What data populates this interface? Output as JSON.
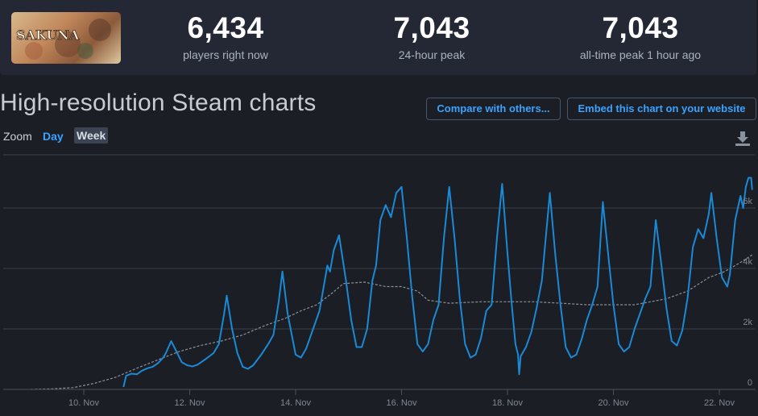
{
  "header": {
    "logo_text": "SAKUNA",
    "stats": [
      {
        "value": "6,434",
        "label": "players right now"
      },
      {
        "value": "7,043",
        "label": "24-hour peak"
      },
      {
        "value": "7,043",
        "label": "all-time peak 1 hour ago"
      }
    ]
  },
  "section": {
    "title": "High-resolution Steam charts",
    "compare_label": "Compare with others...",
    "embed_label": "Embed this chart on your website"
  },
  "zoom": {
    "label": "Zoom",
    "options": [
      "Day",
      "Week"
    ],
    "selected": "Week"
  },
  "icons": {
    "download": "download-icon"
  },
  "colors": {
    "players_line": "#1a8ad6",
    "average_line": "#8b9199",
    "accent": "#3aa2ff",
    "background": "#1b1e25"
  },
  "chart_data": {
    "type": "line",
    "xlabel": "",
    "ylabel": "",
    "x_unit": "day of November",
    "xlim": [
      9.0,
      22.5
    ],
    "ylim": [
      0,
      7300
    ],
    "y_ticks": [
      0,
      2000,
      4000,
      6000
    ],
    "y_tick_labels": [
      "0",
      "2k",
      "4k",
      "6k"
    ],
    "x_ticks": [
      10,
      12,
      14,
      16,
      18,
      20,
      22
    ],
    "x_tick_labels": [
      "10. Nov",
      "12. Nov",
      "14. Nov",
      "16. Nov",
      "18. Nov",
      "20. Nov",
      "22. Nov"
    ],
    "grid": true,
    "series": [
      {
        "name": "",
        "style": "solid",
        "points": [
          [
            10.75,
            80
          ],
          [
            10.8,
            450
          ],
          [
            10.9,
            520
          ],
          [
            11.0,
            500
          ],
          [
            11.1,
            620
          ],
          [
            11.2,
            700
          ],
          [
            11.3,
            750
          ],
          [
            11.4,
            870
          ],
          [
            11.5,
            1050
          ],
          [
            11.55,
            1200
          ],
          [
            11.65,
            1600
          ],
          [
            11.75,
            1250
          ],
          [
            11.85,
            900
          ],
          [
            11.95,
            800
          ],
          [
            12.05,
            760
          ],
          [
            12.15,
            820
          ],
          [
            12.3,
            1000
          ],
          [
            12.45,
            1200
          ],
          [
            12.55,
            1500
          ],
          [
            12.65,
            2500
          ],
          [
            12.7,
            3100
          ],
          [
            12.8,
            2000
          ],
          [
            12.9,
            1200
          ],
          [
            13.0,
            750
          ],
          [
            13.1,
            680
          ],
          [
            13.2,
            800
          ],
          [
            13.35,
            1150
          ],
          [
            13.5,
            1550
          ],
          [
            13.58,
            1800
          ],
          [
            13.68,
            2900
          ],
          [
            13.75,
            3900
          ],
          [
            13.85,
            2500
          ],
          [
            13.95,
            1600
          ],
          [
            14.0,
            1150
          ],
          [
            14.1,
            1050
          ],
          [
            14.2,
            1350
          ],
          [
            14.35,
            2100
          ],
          [
            14.45,
            2600
          ],
          [
            14.52,
            3300
          ],
          [
            14.6,
            4100
          ],
          [
            14.65,
            3900
          ],
          [
            14.72,
            4600
          ],
          [
            14.82,
            5100
          ],
          [
            14.95,
            3600
          ],
          [
            15.05,
            2300
          ],
          [
            15.15,
            1400
          ],
          [
            15.25,
            1400
          ],
          [
            15.35,
            2000
          ],
          [
            15.45,
            3600
          ],
          [
            15.52,
            4100
          ],
          [
            15.6,
            5600
          ],
          [
            15.7,
            6100
          ],
          [
            15.8,
            5700
          ],
          [
            15.9,
            6500
          ],
          [
            16.0,
            6700
          ],
          [
            16.1,
            5000
          ],
          [
            16.2,
            3100
          ],
          [
            16.3,
            1500
          ],
          [
            16.4,
            1250
          ],
          [
            16.5,
            1500
          ],
          [
            16.6,
            2300
          ],
          [
            16.7,
            2800
          ],
          [
            16.8,
            5000
          ],
          [
            16.9,
            6700
          ],
          [
            17.0,
            5000
          ],
          [
            17.1,
            3000
          ],
          [
            17.2,
            1500
          ],
          [
            17.3,
            1050
          ],
          [
            17.4,
            1150
          ],
          [
            17.5,
            1700
          ],
          [
            17.6,
            2600
          ],
          [
            17.7,
            2800
          ],
          [
            17.8,
            5000
          ],
          [
            17.9,
            6800
          ],
          [
            18.0,
            4500
          ],
          [
            18.08,
            2800
          ],
          [
            18.15,
            1500
          ],
          [
            18.2,
            1150
          ],
          [
            18.22,
            500
          ],
          [
            18.25,
            1100
          ],
          [
            18.35,
            1400
          ],
          [
            18.45,
            1900
          ],
          [
            18.55,
            2700
          ],
          [
            18.65,
            3600
          ],
          [
            18.8,
            6500
          ],
          [
            18.9,
            4500
          ],
          [
            19.0,
            2800
          ],
          [
            19.1,
            1400
          ],
          [
            19.2,
            1050
          ],
          [
            19.3,
            1150
          ],
          [
            19.4,
            1650
          ],
          [
            19.5,
            2300
          ],
          [
            19.6,
            2800
          ],
          [
            19.7,
            3400
          ],
          [
            19.8,
            6200
          ],
          [
            19.9,
            4500
          ],
          [
            20.0,
            2800
          ],
          [
            20.1,
            1500
          ],
          [
            20.2,
            1250
          ],
          [
            20.3,
            1400
          ],
          [
            20.4,
            2000
          ],
          [
            20.5,
            2500
          ],
          [
            20.6,
            3000
          ],
          [
            20.7,
            3400
          ],
          [
            20.8,
            5600
          ],
          [
            20.9,
            4200
          ],
          [
            21.0,
            2700
          ],
          [
            21.1,
            1600
          ],
          [
            21.2,
            1450
          ],
          [
            21.3,
            1950
          ],
          [
            21.4,
            3000
          ],
          [
            21.5,
            4700
          ],
          [
            21.6,
            5300
          ],
          [
            21.7,
            5000
          ],
          [
            21.8,
            5800
          ],
          [
            21.85,
            6500
          ],
          [
            21.95,
            5000
          ],
          [
            22.05,
            3700
          ],
          [
            22.15,
            3400
          ],
          [
            22.2,
            3800
          ],
          [
            22.3,
            5600
          ],
          [
            22.4,
            6400
          ],
          [
            22.45,
            6000
          ],
          [
            22.5,
            6700
          ],
          [
            22.55,
            7000
          ],
          [
            22.6,
            7000
          ],
          [
            22.62,
            6600
          ]
        ]
      },
      {
        "name": "",
        "style": "dashed",
        "points": [
          [
            9.0,
            0
          ],
          [
            9.4,
            20
          ],
          [
            9.8,
            60
          ],
          [
            10.2,
            200
          ],
          [
            10.6,
            400
          ],
          [
            11.0,
            700
          ],
          [
            11.4,
            980
          ],
          [
            11.8,
            1250
          ],
          [
            12.2,
            1450
          ],
          [
            12.6,
            1600
          ],
          [
            13.0,
            1800
          ],
          [
            13.4,
            2100
          ],
          [
            13.8,
            2350
          ],
          [
            14.1,
            2600
          ],
          [
            14.4,
            2800
          ],
          [
            14.7,
            3200
          ],
          [
            14.9,
            3500
          ],
          [
            15.3,
            3550
          ],
          [
            15.7,
            3400
          ],
          [
            16.0,
            3400
          ],
          [
            16.3,
            3250
          ],
          [
            16.5,
            2950
          ],
          [
            16.9,
            2850
          ],
          [
            17.5,
            2900
          ],
          [
            18.0,
            2900
          ],
          [
            18.5,
            2900
          ],
          [
            19.0,
            2850
          ],
          [
            19.5,
            2800
          ],
          [
            20.0,
            2800
          ],
          [
            20.4,
            2800
          ],
          [
            20.7,
            2900
          ],
          [
            21.0,
            3000
          ],
          [
            21.4,
            3250
          ],
          [
            21.8,
            3700
          ],
          [
            22.1,
            3900
          ],
          [
            22.4,
            4200
          ],
          [
            22.62,
            4450
          ]
        ]
      }
    ]
  }
}
